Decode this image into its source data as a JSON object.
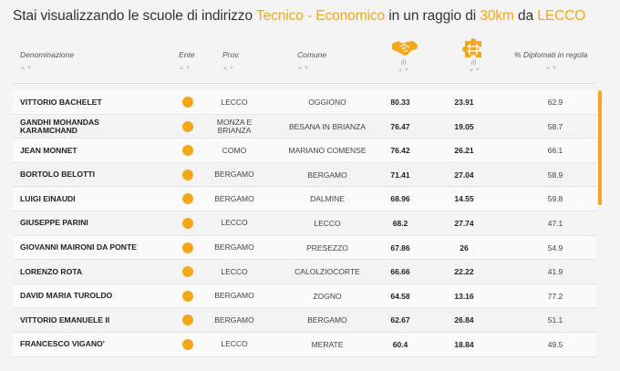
{
  "title": {
    "prefix": "Stai visualizzando le scuole di indirizzo ",
    "indirizzo": "Tecnico - Economico",
    "middle": " in un raggio di ",
    "raggio": "30km",
    "connector": " da ",
    "citta": "LECCO"
  },
  "columns": {
    "denominazione": "Denominazione",
    "ente": "Ente",
    "prov": "Prov.",
    "comune": "Comune",
    "icon1_sub": "(i)",
    "icon2_sub": "(i)",
    "diplomati": "% Diplomati in regola"
  },
  "sort_glyph": "▲▼",
  "colors": {
    "accent": "#f0a81c",
    "dot": "#f3a81c"
  },
  "rows": [
    {
      "name": "VITTORIO BACHELET",
      "prov": "LECCO",
      "comune": "OGGIONO",
      "v1": "80.33",
      "v2": "23.91",
      "v3": "62.9"
    },
    {
      "name": "GANDHI MOHANDAS KARAMCHAND",
      "prov": "MONZA E BRIANZA",
      "comune": "BESANA IN BRIANZA",
      "v1": "76.47",
      "v2": "19.05",
      "v3": "58.7"
    },
    {
      "name": "JEAN MONNET",
      "prov": "COMO",
      "comune": "MARIANO COMENSE",
      "v1": "76.42",
      "v2": "26.21",
      "v3": "66.1"
    },
    {
      "name": "BORTOLO BELOTTI",
      "prov": "BERGAMO",
      "comune": "BERGAMO",
      "v1": "71.41",
      "v2": "27.04",
      "v3": "58.9"
    },
    {
      "name": "LUIGI EINAUDI",
      "prov": "BERGAMO",
      "comune": "DALMINE",
      "v1": "68.96",
      "v2": "14.55",
      "v3": "59.8"
    },
    {
      "name": "GIUSEPPE PARINI",
      "prov": "LECCO",
      "comune": "LECCO",
      "v1": "68.2",
      "v2": "27.74",
      "v3": "47.1"
    },
    {
      "name": "GIOVANNI MAIRONI DA PONTE",
      "prov": "BERGAMO",
      "comune": "PRESEZZO",
      "v1": "67.86",
      "v2": "26",
      "v3": "54.9"
    },
    {
      "name": "LORENZO ROTA",
      "prov": "LECCO",
      "comune": "CALOLZIOCORTE",
      "v1": "66.66",
      "v2": "22.22",
      "v3": "41.9"
    },
    {
      "name": "DAVID MARIA TUROLDO",
      "prov": "BERGAMO",
      "comune": "ZOGNO",
      "v1": "64.58",
      "v2": "13.16",
      "v3": "77.2"
    },
    {
      "name": "VITTORIO EMANUELE II",
      "prov": "BERGAMO",
      "comune": "BERGAMO",
      "v1": "62.67",
      "v2": "26.84",
      "v3": "51.1"
    },
    {
      "name": "FRANCESCO VIGANO'",
      "prov": "LECCO",
      "comune": "MERATE",
      "v1": "60.4",
      "v2": "18.84",
      "v3": "49.5"
    }
  ]
}
